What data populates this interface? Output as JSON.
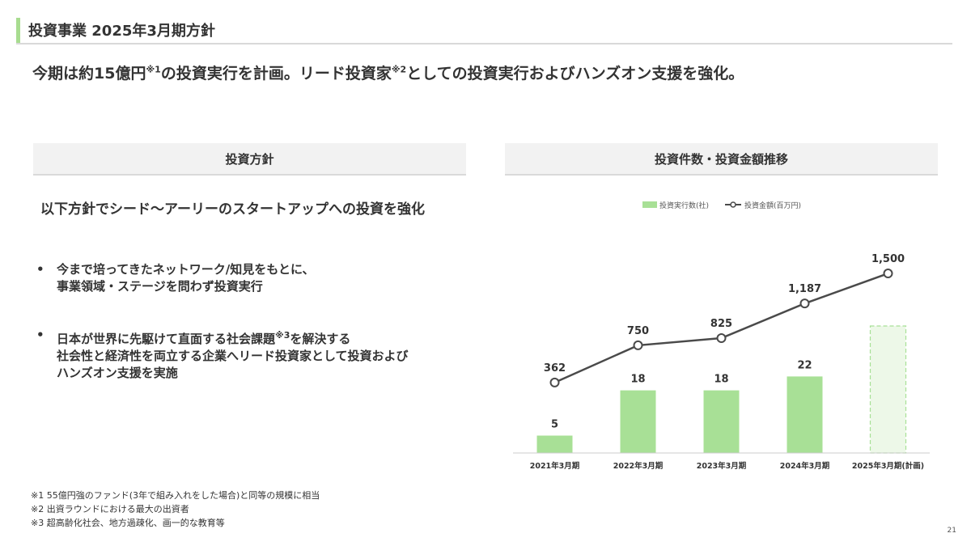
{
  "header": {
    "title": "投資事業 2025年3月期方針"
  },
  "lead": {
    "text_a": "今期は約15億円",
    "note1": "※1",
    "text_b": "の投資実行を計画。リード投資家",
    "note2": "※2",
    "text_c": "としての投資実行およびハンズオン支援を強化。"
  },
  "policy": {
    "heading": "投資方針",
    "lead": "以下方針でシード～アーリーのスタートアップへの投資を強化",
    "bullet_symbol": "•",
    "bullet1": {
      "line1": "今まで培ってきたネットワーク/知見をもとに、",
      "line2": "事業領域・ステージを問わず投資実行"
    },
    "bullet2": {
      "line1_a": "日本が世界に先駆けて直面する社会課題",
      "line1_note": "※3",
      "line1_b": "を解決する",
      "line2": "社会性と経済性を両立する企業へリード投資家として投資および",
      "line3": "ハンズオン支援を実施"
    }
  },
  "trend": {
    "heading": "投資件数・投資金額推移"
  },
  "chart_data": {
    "type": "bar",
    "categories": [
      "2021年3月期",
      "2022年3月期",
      "2023年3月期",
      "2024年3月期",
      "2025年3月期(計画)"
    ],
    "series": [
      {
        "name": "投資実行数(社)",
        "type": "bar",
        "values": [
          5,
          18,
          18,
          22,
          null
        ],
        "color": "#a8e096"
      },
      {
        "name": "投資金額(百万円)",
        "type": "line",
        "values": [
          362,
          750,
          825,
          1187,
          1500
        ],
        "color": "#4a4a4a"
      }
    ],
    "planned_bar": {
      "category": "2025年3月期(計画)",
      "style": "dashed",
      "fill": "#edf8e8",
      "stroke": "#a8e096"
    },
    "value_labels": {
      "bars": [
        "5",
        "18",
        "18",
        "22"
      ],
      "line": [
        "362",
        "750",
        "825",
        "1,187",
        "1,500"
      ]
    },
    "legend_position": "top-center",
    "grid": false,
    "title": "",
    "xlabel": "",
    "ylabel": ""
  },
  "footnotes": [
    "※1 55億円強のファンド(3年で組み入れをした場合)と同等の規模に相当",
    "※2 出資ラウンドにおける最大の出資者",
    "※3 超高齢化社会、地方過疎化、画一的な教育等"
  ],
  "page_number": "21"
}
